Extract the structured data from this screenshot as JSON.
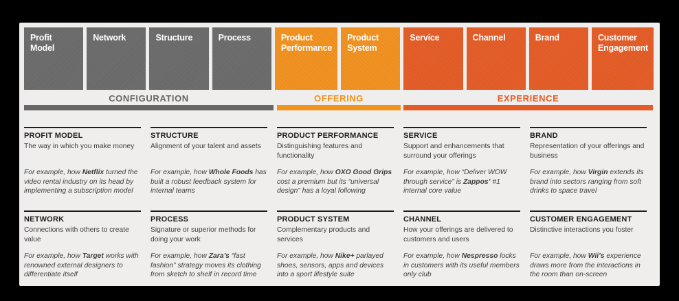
{
  "palette": {
    "background": "#000000",
    "panel": "#efeeec",
    "gray_box": "#6a6a6a",
    "orange_light": "#f0901e",
    "orange_dark": "#e35b25",
    "heading_text": "#1d1d1b",
    "body_text": "#3d3d3c",
    "gray_label": "#666665"
  },
  "top_boxes": [
    {
      "label": "Profit Model",
      "variant": "gray"
    },
    {
      "label": "Network",
      "variant": "gray"
    },
    {
      "label": "Structure",
      "variant": "gray"
    },
    {
      "label": "Process",
      "variant": "gray"
    },
    {
      "label": "Product Performance",
      "variant": "orange-light"
    },
    {
      "label": "Product System",
      "variant": "orange-light"
    },
    {
      "label": "Service",
      "variant": "orange-dark"
    },
    {
      "label": "Channel",
      "variant": "orange-dark"
    },
    {
      "label": "Brand",
      "variant": "orange-dark"
    },
    {
      "label": "Customer Engagement",
      "variant": "orange-dark"
    }
  ],
  "groups": [
    {
      "label": "CONFIGURATION"
    },
    {
      "label": "OFFERING"
    },
    {
      "label": "EXPERIENCE"
    }
  ],
  "cells": {
    "row1": [
      {
        "heading": "PROFIT MODEL",
        "description": "The way in which you make money",
        "example": "For example, how **Netflix** turned the video rental industry on its head by implementing a subscription model"
      },
      {
        "heading": "STRUCTURE",
        "description": "Alignment of your talent and assets",
        "example": "For example, how **Whole Foods** has built a robust feedback system for internal teams"
      },
      {
        "heading": "PRODUCT PERFORMANCE",
        "description": "Distinguishing features and functionality",
        "example": "For example, how **OXO Good Grips** cost a premium but its “universal design” has a loyal following"
      },
      {
        "heading": "SERVICE",
        "description": "Support and enhancements that surround your offerings",
        "example": "For example, how “Deliver WOW through service” is **Zappos’** #1 internal core value"
      },
      {
        "heading": "BRAND",
        "description": "Representation of your offerings and business",
        "example": "For example, how **Virgin** extends its brand into sectors ranging from soft drinks to space travel"
      }
    ],
    "row2": [
      {
        "heading": "NETWORK",
        "description": "Connections with others to create value",
        "example": "For example, how **Target** works with renowned external designers to differentiate itself"
      },
      {
        "heading": "PROCESS",
        "description": "Signature or superior methods for doing your work",
        "example": "For example, how **Zara’s** “fast fashion” strategy moves its clothing from sketch to shelf in record time"
      },
      {
        "heading": "PRODUCT SYSTEM",
        "description": "Complementary products and services",
        "example": "For example, how **Nike+** parlayed shoes, sensors, apps and devices into a sport lifestyle suite"
      },
      {
        "heading": "CHANNEL",
        "description": "How your offerings are delivered to customers and users",
        "example": "For example, how **Nespresso** locks in customers with its useful members only club"
      },
      {
        "heading": "CUSTOMER ENGAGEMENT",
        "description": "Distinctive interactions you foster",
        "example": "For example, how **Wii’s** experience draws more from the interactions in the room than on-screen"
      }
    ]
  }
}
